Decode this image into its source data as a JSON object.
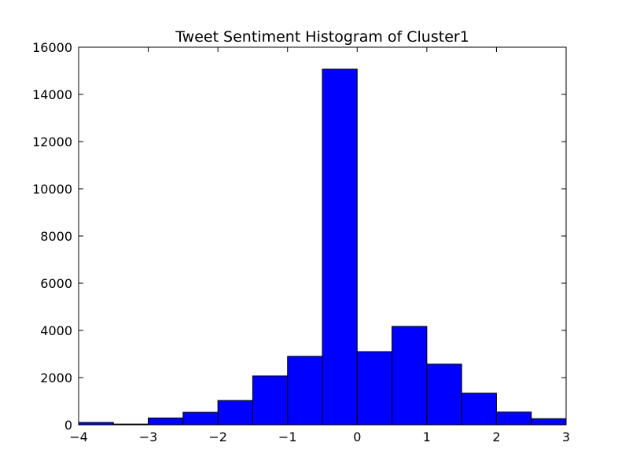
{
  "chart_data": {
    "type": "bar",
    "title": "Tweet Sentiment Histogram of Cluster1",
    "xlabel": "",
    "ylabel": "",
    "xlim": [
      -4,
      3
    ],
    "ylim": [
      0,
      16000
    ],
    "bin_width": 0.5,
    "bins": [
      {
        "x0": -4.0,
        "x1": -3.5,
        "count": 100
      },
      {
        "x0": -3.5,
        "x1": -3.0,
        "count": 30
      },
      {
        "x0": -3.0,
        "x1": -2.5,
        "count": 290
      },
      {
        "x0": -2.5,
        "x1": -2.0,
        "count": 530
      },
      {
        "x0": -2.0,
        "x1": -1.5,
        "count": 1030
      },
      {
        "x0": -1.5,
        "x1": -1.0,
        "count": 2070
      },
      {
        "x0": -1.0,
        "x1": -0.5,
        "count": 2900
      },
      {
        "x0": -0.5,
        "x1": 0.0,
        "count": 15070
      },
      {
        "x0": 0.0,
        "x1": 0.5,
        "count": 3100
      },
      {
        "x0": 0.5,
        "x1": 1.0,
        "count": 4170
      },
      {
        "x0": 1.0,
        "x1": 1.5,
        "count": 2570
      },
      {
        "x0": 1.5,
        "x1": 2.0,
        "count": 1340
      },
      {
        "x0": 2.0,
        "x1": 2.5,
        "count": 540
      },
      {
        "x0": 2.5,
        "x1": 3.0,
        "count": 260
      }
    ],
    "xticks": [
      -4,
      -3,
      -2,
      -1,
      0,
      1,
      2,
      3
    ],
    "xtick_labels": [
      "−4",
      "−3",
      "−2",
      "−1",
      "0",
      "1",
      "2",
      "3"
    ],
    "yticks": [
      0,
      2000,
      4000,
      6000,
      8000,
      10000,
      12000,
      14000,
      16000
    ],
    "ytick_labels": [
      "0",
      "2000",
      "4000",
      "6000",
      "8000",
      "10000",
      "12000",
      "14000",
      "16000"
    ],
    "bar_color": "#0000ff",
    "edge_color": "#000000",
    "grid": false,
    "legend": "none"
  }
}
